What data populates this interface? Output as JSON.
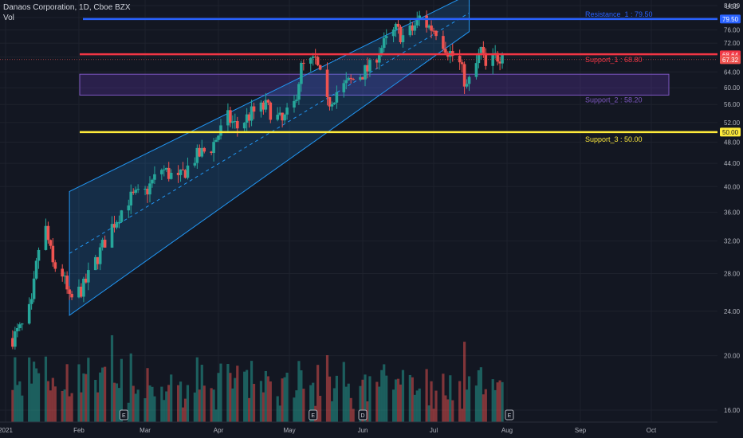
{
  "header": {
    "title": "Danaos Corporation, 1D, Cboe BZX",
    "volume_label": "Vol"
  },
  "axis": {
    "currency": "USD"
  },
  "price_badges": {
    "last": "68.64",
    "prev": "67.32"
  },
  "colors": {
    "background": "#131722",
    "up": "#26a69a",
    "down": "#ef5350",
    "resistance": "#2962ff",
    "support_1": "#f23645",
    "support_2": "#673ab7",
    "support_3": "#ffeb3b",
    "channel": "#2196f3"
  },
  "chart_data": {
    "type": "candlestick",
    "title": "Danaos Corporation, 1D, Cboe BZX",
    "ylim": [
      14,
      86
    ],
    "y_scale": "log",
    "y_ticks": [
      16,
      20,
      24,
      28,
      32,
      36,
      40,
      44,
      48,
      52,
      56,
      60,
      64,
      68,
      72,
      76,
      80,
      84
    ],
    "x_ticks": [
      "2021",
      "Feb",
      "Mar",
      "Apr",
      "May",
      "Jun",
      "Jul",
      "Aug",
      "Sep",
      "Oct"
    ],
    "levels": [
      {
        "name": "Resistance_1",
        "label": "Resistance_1 : 79.50",
        "value": 79.5,
        "badge": "79.50",
        "color": "#2962ff"
      },
      {
        "name": "Support_1",
        "label": "Support_1 : 68.80",
        "value": 68.8,
        "color": "#f23645"
      },
      {
        "name": "Support_3",
        "label": "Support_3 : 50.00",
        "value": 50.0,
        "badge": "50.00",
        "color": "#ffeb3b"
      }
    ],
    "zone": {
      "name": "Support_2",
      "label": "Support_2 : 58.20",
      "top": 63.4,
      "bottom": 58.2,
      "color": "#673ab7"
    },
    "channel": {
      "start": "2021-01-28",
      "end": "2021-07-16",
      "upper_start": 39.2,
      "upper_end": 88,
      "lower_start": 23.6,
      "lower_end": 75.5
    },
    "event_markers": [
      {
        "date": "2021-02-20",
        "label": "E"
      },
      {
        "date": "2021-05-11",
        "label": "E"
      },
      {
        "date": "2021-06-01",
        "label": "D"
      },
      {
        "date": "2021-08-02",
        "label": "E"
      }
    ],
    "anchors": [
      [
        "2021-01-04",
        21.5
      ],
      [
        "2021-01-08",
        22.5
      ],
      [
        "2021-01-12",
        24.5
      ],
      [
        "2021-01-15",
        31
      ],
      [
        "2021-01-18",
        33.5
      ],
      [
        "2021-01-21",
        29
      ],
      [
        "2021-01-25",
        28
      ],
      [
        "2021-01-28",
        25
      ],
      [
        "2021-02-03",
        26.5
      ],
      [
        "2021-02-09",
        30
      ],
      [
        "2021-02-15",
        34
      ],
      [
        "2021-02-22",
        38
      ],
      [
        "2021-03-01",
        39
      ],
      [
        "2021-03-08",
        43
      ],
      [
        "2021-03-15",
        41
      ],
      [
        "2021-03-22",
        45
      ],
      [
        "2021-03-29",
        47
      ],
      [
        "2021-04-05",
        53
      ],
      [
        "2021-04-09",
        51
      ],
      [
        "2021-04-15",
        54
      ],
      [
        "2021-04-21",
        55.5
      ],
      [
        "2021-04-28",
        52
      ],
      [
        "2021-05-03",
        56
      ],
      [
        "2021-05-06",
        65
      ],
      [
        "2021-05-12",
        67
      ],
      [
        "2021-05-17",
        56
      ],
      [
        "2021-05-21",
        59
      ],
      [
        "2021-05-28",
        62
      ],
      [
        "2021-06-04",
        65
      ],
      [
        "2021-06-08",
        70
      ],
      [
        "2021-06-11",
        72.5
      ],
      [
        "2021-06-15",
        76
      ],
      [
        "2021-06-18",
        74
      ],
      [
        "2021-06-22",
        76
      ],
      [
        "2021-06-25",
        80
      ],
      [
        "2021-06-29",
        77
      ],
      [
        "2021-07-02",
        76
      ],
      [
        "2021-07-07",
        70
      ],
      [
        "2021-07-12",
        66
      ],
      [
        "2021-07-15",
        60
      ],
      [
        "2021-07-19",
        66
      ],
      [
        "2021-07-21",
        70
      ],
      [
        "2021-07-23",
        65
      ],
      [
        "2021-07-27",
        68
      ],
      [
        "2021-07-30",
        68.64
      ]
    ]
  }
}
